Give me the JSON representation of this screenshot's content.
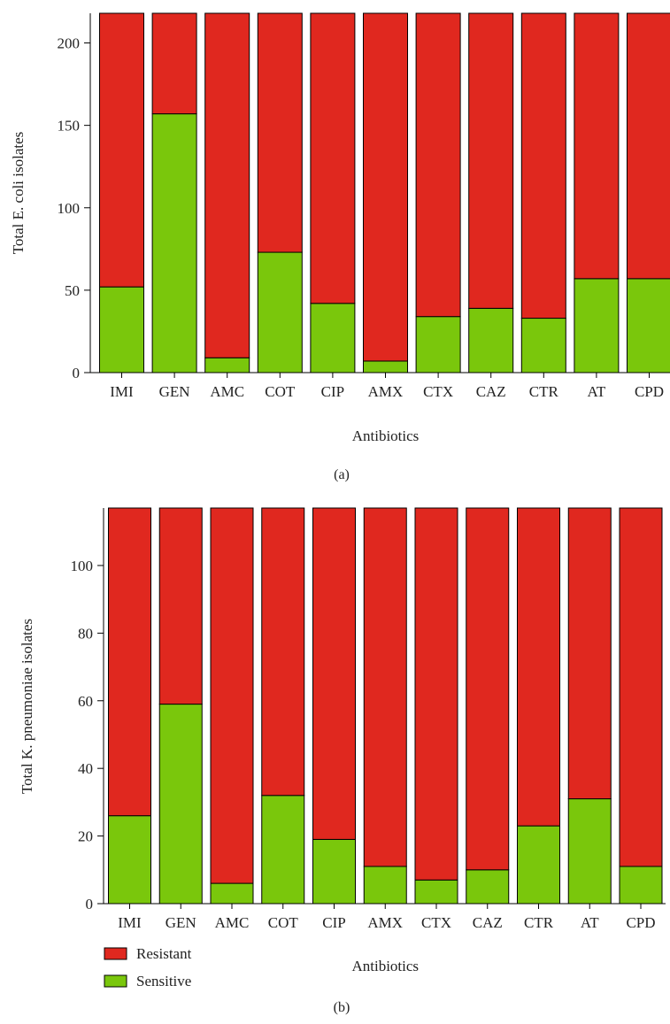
{
  "chart_data": [
    {
      "type": "bar",
      "stacked": true,
      "panel_label": "(a)",
      "categories": [
        "IMI",
        "GEN",
        "AMC",
        "COT",
        "CIP",
        "AMX",
        "CTX",
        "CAZ",
        "CTR",
        "AT",
        "CPD"
      ],
      "total": 218,
      "series": [
        {
          "name": "Sensitive",
          "color": "#7ac70c",
          "values": [
            52,
            157,
            9,
            73,
            42,
            7,
            34,
            39,
            33,
            57,
            57
          ]
        },
        {
          "name": "Resistant",
          "color": "#e0281f",
          "values": [
            166,
            61,
            209,
            145,
            176,
            211,
            184,
            179,
            185,
            161,
            161
          ]
        }
      ],
      "xlabel": "Antibiotics",
      "ylabel": "Total E. coli isolates",
      "ylim": [
        0,
        218
      ],
      "yticks": [
        0,
        50,
        100,
        150,
        200
      ],
      "grid": false
    },
    {
      "type": "bar",
      "stacked": true,
      "panel_label": "(b)",
      "categories": [
        "IMI",
        "GEN",
        "AMC",
        "COT",
        "CIP",
        "AMX",
        "CTX",
        "CAZ",
        "CTR",
        "AT",
        "CPD"
      ],
      "total": 117,
      "series": [
        {
          "name": "Sensitive",
          "color": "#7ac70c",
          "values": [
            26,
            59,
            6,
            32,
            19,
            11,
            7,
            10,
            23,
            31,
            11
          ]
        },
        {
          "name": "Resistant",
          "color": "#e0281f",
          "values": [
            91,
            58,
            111,
            85,
            98,
            106,
            110,
            107,
            94,
            86,
            106
          ]
        }
      ],
      "xlabel": "Antibiotics",
      "ylabel": "Total K. pneumoniae isolates",
      "ylim": [
        0,
        117
      ],
      "yticks": [
        0,
        20,
        40,
        60,
        80,
        100
      ],
      "grid": false
    }
  ],
  "legend": {
    "placement": "bottom-left",
    "items": [
      {
        "label": "Resistant",
        "color": "#e0281f"
      },
      {
        "label": "Sensitive",
        "color": "#7ac70c"
      }
    ]
  }
}
